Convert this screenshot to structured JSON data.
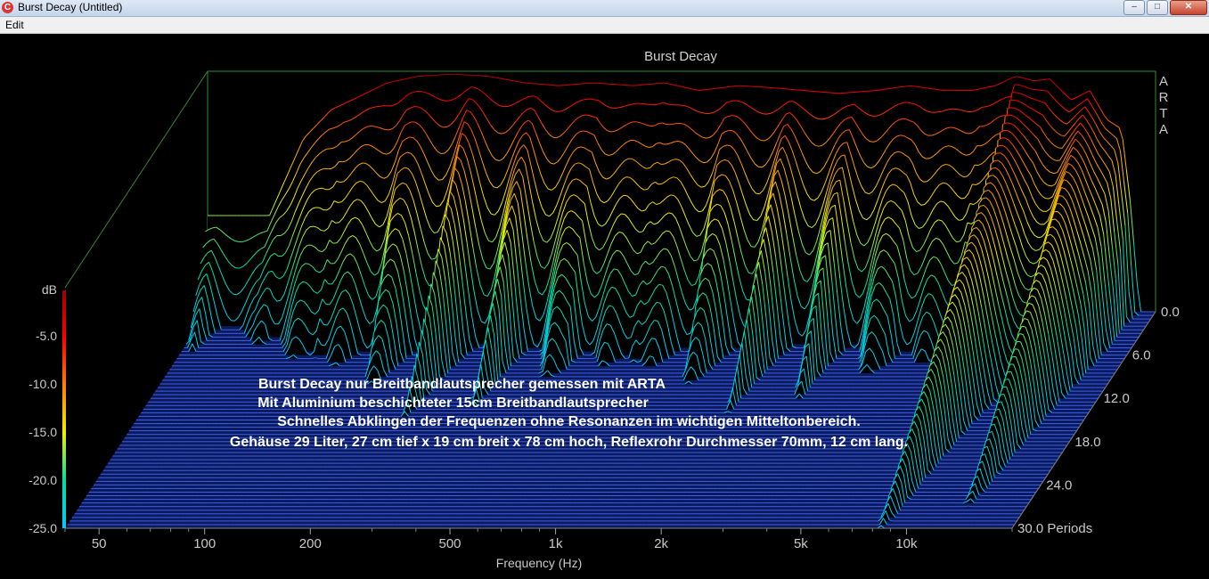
{
  "window": {
    "icon_letter": "C",
    "title": "Burst Decay  (Untitled)",
    "minimize": "–",
    "maximize": "□",
    "close": "✕"
  },
  "menu": {
    "edit": "Edit"
  },
  "chart_data": {
    "type": "waterfall",
    "title": "Burst Decay",
    "watermark": "ARTA",
    "xlabel": "Frequency (Hz)",
    "x_scale": "log",
    "x_range": [
      40,
      20000
    ],
    "x_ticks": [
      "50",
      "100",
      "200",
      "500",
      "1k",
      "2k",
      "5k",
      "10k"
    ],
    "x_tick_values": [
      50,
      100,
      200,
      500,
      1000,
      2000,
      5000,
      10000
    ],
    "ylabel": "dB",
    "y_range": [
      -25,
      0
    ],
    "y_ticks": [
      "-5.0",
      "-10.0",
      "-15.0",
      "-20.0",
      "-25.0"
    ],
    "y_tick_values": [
      -5,
      -10,
      -15,
      -20,
      -25
    ],
    "z_label_suffix": "Periods",
    "z_range": [
      0,
      30
    ],
    "z_ticks": [
      "0.0",
      "6.0",
      "12.0",
      "18.0",
      "24.0",
      "30.0 Periods"
    ],
    "z_tick_values": [
      0,
      6,
      12,
      18,
      24,
      30
    ],
    "grid": false,
    "colorbar": [
      "#00c8ff",
      "#00e0a0",
      "#f0f000",
      "#ff8000",
      "#ff0000",
      "#a00000"
    ],
    "initial_response": {
      "frequency_hz": [
        60,
        75,
        90,
        110,
        130,
        160,
        200,
        250,
        320,
        400,
        500,
        650,
        800,
        1000,
        1300,
        1600,
        2000,
        2500,
        3200,
        4000,
        5000,
        6000,
        7000,
        8000,
        9000,
        10000,
        11500,
        13000,
        14500,
        16000,
        17000,
        18000
      ],
      "level_db": [
        -15,
        -7,
        -4,
        -2.5,
        -1.2,
        -0.5,
        -0.3,
        -0.5,
        -1.2,
        -1.5,
        -1.2,
        -1.5,
        -1.2,
        -2,
        -1.5,
        -1.7,
        -2,
        -2.3,
        -2,
        -1.5,
        -2,
        -2,
        -1.5,
        -0.5,
        -1,
        -0.8,
        -3,
        -2,
        -5,
        -6,
        -14,
        -25
      ]
    }
  },
  "annotation": {
    "line1": "Burst Decay nur Breitbandlautsprecher gemessen mit ARTA",
    "line2": "Mit Aluminium beschichteter 15cm Breitbandlautsprecher",
    "line3": "Schnelles Abklingen der Frequenzen ohne Resonanzen im wichtigen Mitteltonbereich.",
    "line4": "Gehäuse 29 Liter,  27 cm tief x 19 cm breit x 78 cm hoch, Reflexrohr Durchmesser 70mm, 12 cm lang."
  }
}
